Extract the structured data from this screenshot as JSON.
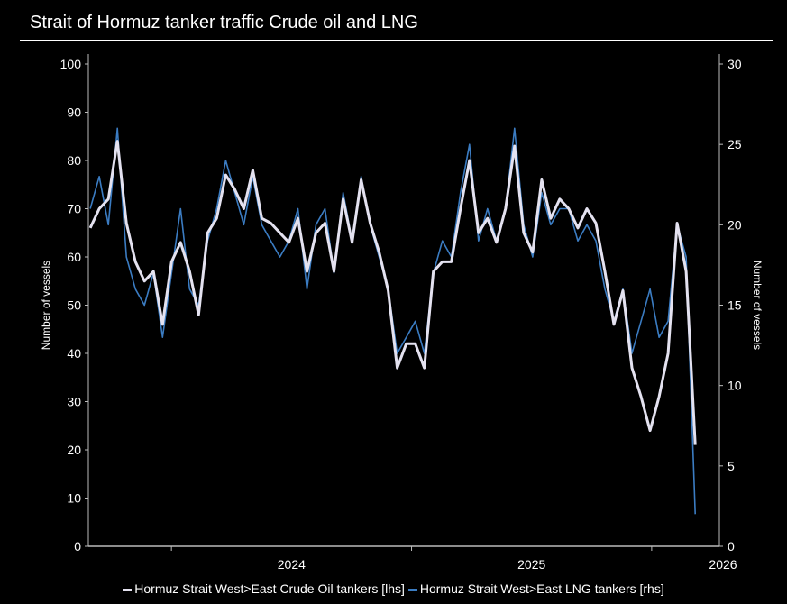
{
  "title": "Strait of Hormuz tanker traffic Crude oil and LNG",
  "chart_data": {
    "type": "line",
    "title": "Strait of Hormuz tanker traffic Crude oil and LNG",
    "xlabel": "",
    "ylabel_left": "Number of vessels",
    "ylabel_right": "Number of vessels",
    "ylim_left": [
      0,
      100
    ],
    "ylim_right": [
      0,
      30
    ],
    "xlim": [
      2023.154,
      2025.782
    ],
    "x_start": 2023.162,
    "x_step": 0.0376,
    "yticks_left": [
      "0",
      "10",
      "20",
      "30",
      "40",
      "50",
      "60",
      "70",
      "80",
      "90",
      "100"
    ],
    "yticks_right": [
      "0",
      "5",
      "10",
      "15",
      "20",
      "25",
      "30"
    ],
    "xticks": [
      "2024",
      "2025",
      "2026"
    ],
    "grid": false,
    "legend_position": "bottom",
    "series": [
      {
        "name": "Hormuz Strait West>East LNG tankers [rhs]",
        "axis": "right",
        "color": "#3b7cc2",
        "values": [
          21,
          23,
          20,
          26,
          18,
          16,
          15,
          17,
          13,
          17,
          21,
          16,
          15,
          19,
          21,
          24,
          22,
          20,
          23,
          20,
          19,
          18,
          19,
          21,
          16,
          20,
          21,
          17,
          22,
          19,
          23,
          20,
          18,
          16,
          12,
          13,
          14,
          12,
          17,
          19,
          18,
          22,
          25,
          19,
          21,
          19,
          21,
          26,
          20,
          18,
          22,
          20,
          21,
          21,
          19,
          20,
          19,
          16,
          14,
          16,
          12,
          14,
          16,
          13,
          14,
          20,
          18,
          2
        ]
      },
      {
        "name": "Hormuz Strait West>East Crude Oil tankers [lhs]",
        "axis": "left",
        "color": "#e4e2f0",
        "values": [
          66,
          70,
          72,
          84,
          67,
          59,
          55,
          57,
          46,
          59,
          63,
          57,
          48,
          65,
          68,
          77,
          74,
          70,
          78,
          68,
          67,
          65,
          63,
          68,
          57,
          65,
          67,
          57,
          72,
          63,
          76,
          67,
          61,
          53,
          37,
          42,
          42,
          37,
          57,
          59,
          59,
          70,
          80,
          65,
          68,
          63,
          70,
          83,
          65,
          61,
          76,
          68,
          72,
          70,
          66,
          70,
          67,
          57,
          46,
          53,
          37,
          31,
          24,
          31,
          40,
          67,
          57,
          21
        ]
      }
    ]
  }
}
